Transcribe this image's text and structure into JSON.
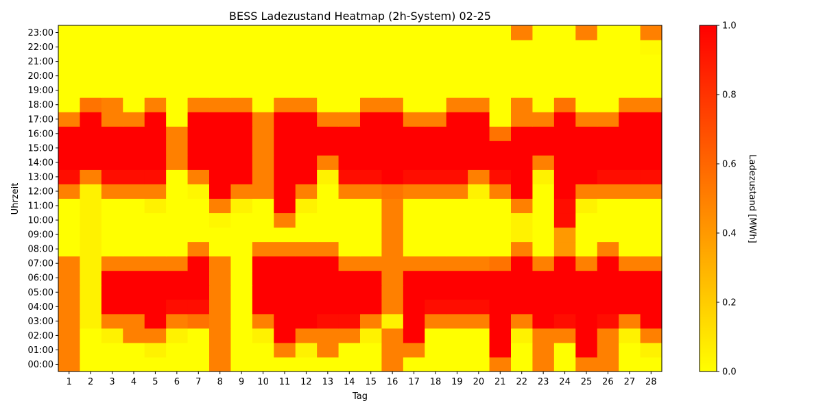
{
  "chart_data": {
    "type": "heatmap",
    "title": "BESS Ladezustand Heatmap (2h-System) 02-25",
    "xlabel": "Tag",
    "ylabel": "Uhrzeit",
    "x_categories": [
      "1",
      "2",
      "3",
      "4",
      "5",
      "6",
      "7",
      "8",
      "9",
      "10",
      "11",
      "12",
      "13",
      "14",
      "15",
      "16",
      "17",
      "18",
      "19",
      "20",
      "21",
      "22",
      "23",
      "24",
      "25",
      "26",
      "27",
      "28"
    ],
    "y_categories": [
      "00:00",
      "01:00",
      "02:00",
      "03:00",
      "04:00",
      "05:00",
      "06:00",
      "07:00",
      "08:00",
      "09:00",
      "10:00",
      "11:00",
      "12:00",
      "13:00",
      "14:00",
      "15:00",
      "16:00",
      "17:00",
      "18:00",
      "19:00",
      "20:00",
      "21:00",
      "22:00",
      "23:00"
    ],
    "colorbar": {
      "label": "Ladezustand [MWh]",
      "range": [
        0.0,
        1.0
      ],
      "ticks": [
        "0.0",
        "0.2",
        "0.4",
        "0.6",
        "0.8",
        "1.0"
      ],
      "colors": [
        "#ffff00",
        "#ff0000"
      ]
    },
    "values_by_hour": [
      [
        0.5,
        0,
        0,
        0,
        0,
        0,
        0,
        0.5,
        0,
        0,
        0,
        0,
        0,
        0,
        0,
        0.5,
        0,
        0,
        0,
        0,
        0.5,
        0,
        0.5,
        0,
        0.5,
        0.5,
        0,
        0
      ],
      [
        0.5,
        0,
        0,
        0,
        0.05,
        0,
        0,
        0.5,
        0,
        0,
        0.5,
        0.05,
        0.5,
        0,
        0,
        0.5,
        0.5,
        0,
        0,
        0,
        1,
        0,
        0.5,
        0,
        1,
        0.5,
        0,
        0.05
      ],
      [
        0.5,
        0,
        0.05,
        0.5,
        0.5,
        0.05,
        0,
        0.5,
        0,
        0.05,
        1,
        0.5,
        0.5,
        0.5,
        0.05,
        0.5,
        1,
        0,
        0,
        0,
        1,
        0.05,
        0.5,
        0.5,
        1,
        0.5,
        0.05,
        0.5
      ],
      [
        0.5,
        0.05,
        0.5,
        0.5,
        1,
        0.5,
        0.55,
        0.5,
        0,
        0.5,
        1,
        1,
        0.95,
        0.95,
        0.5,
        0.05,
        1,
        0.5,
        0.5,
        0.5,
        1,
        0.5,
        1,
        0.95,
        1,
        0.95,
        0.5,
        1
      ],
      [
        0.5,
        0.05,
        1,
        1,
        1,
        0.95,
        0.95,
        0.5,
        0,
        1,
        1,
        1,
        1,
        1,
        1,
        0.5,
        1,
        0.95,
        0.95,
        0.95,
        1,
        1,
        1,
        1,
        1,
        1,
        1,
        1
      ],
      [
        0.5,
        0.05,
        1,
        1,
        1,
        1,
        1,
        0.5,
        0,
        1,
        1,
        1,
        1,
        1,
        1,
        0.5,
        1,
        1,
        1,
        1,
        1,
        1,
        1,
        1,
        1,
        1,
        1,
        1
      ],
      [
        0.5,
        0.05,
        1,
        1,
        1,
        1,
        1,
        0.5,
        0,
        1,
        1,
        1,
        1,
        1,
        1,
        0.5,
        1,
        1,
        1,
        1,
        1,
        1,
        1,
        1,
        1,
        1,
        1,
        1
      ],
      [
        0.5,
        0.05,
        0.5,
        0.5,
        0.5,
        0.5,
        1,
        0.5,
        0,
        1,
        1,
        1,
        1,
        0.5,
        0.5,
        0.5,
        0.5,
        0.5,
        0.5,
        0.5,
        0.55,
        1,
        0.5,
        1,
        0.5,
        1,
        0.5,
        0.5
      ],
      [
        0,
        0.05,
        0,
        0,
        0,
        0,
        0.5,
        0,
        0,
        0.5,
        0.5,
        0.5,
        0.5,
        0,
        0,
        0.5,
        0,
        0,
        0,
        0,
        0,
        0.5,
        0,
        0.4,
        0,
        0.5,
        0,
        0
      ],
      [
        0,
        0.05,
        0,
        0,
        0,
        0,
        0,
        0,
        0,
        0,
        0,
        0,
        0,
        0,
        0,
        0.5,
        0,
        0,
        0,
        0,
        0,
        0.05,
        0,
        0.4,
        0,
        0,
        0,
        0
      ],
      [
        0,
        0.05,
        0,
        0,
        0,
        0,
        0,
        0.03,
        0,
        0,
        0.5,
        0,
        0,
        0,
        0,
        0.5,
        0,
        0,
        0,
        0,
        0,
        0.05,
        0,
        0.95,
        0,
        0,
        0,
        0
      ],
      [
        0,
        0.05,
        0,
        0,
        0.05,
        0,
        0,
        0.5,
        0.05,
        0,
        1,
        0.05,
        0,
        0,
        0,
        0.5,
        0,
        0,
        0,
        0,
        0,
        0.5,
        0,
        0.95,
        0.05,
        0,
        0,
        0
      ],
      [
        0.5,
        0.05,
        0.5,
        0.5,
        0.5,
        0,
        0.03,
        1,
        0.5,
        0.5,
        1,
        0.5,
        0,
        0.5,
        0.5,
        0.55,
        0.5,
        0.5,
        0.5,
        0.05,
        0.5,
        1,
        0,
        1,
        0.5,
        0.5,
        0.5,
        0.5
      ],
      [
        0.95,
        0.5,
        0.95,
        0.95,
        0.95,
        0,
        0.5,
        1,
        1,
        0.5,
        1,
        1,
        0.05,
        0.95,
        0.95,
        1,
        0.95,
        0.95,
        0.95,
        0.5,
        0.95,
        1,
        0.05,
        1,
        1,
        0.95,
        0.95,
        0.95
      ],
      [
        1,
        1,
        1,
        1,
        1,
        0.5,
        1,
        1,
        1,
        0.5,
        1,
        1,
        0.5,
        1,
        1,
        1,
        1,
        1,
        1,
        1,
        1,
        1,
        0.5,
        1,
        1,
        1,
        1,
        1
      ],
      [
        1,
        1,
        1,
        1,
        1,
        0.5,
        1,
        1,
        1,
        0.5,
        1,
        1,
        1,
        1,
        1,
        1,
        1,
        1,
        1,
        1,
        1,
        1,
        1,
        1,
        1,
        1,
        1,
        1
      ],
      [
        1,
        1,
        1,
        1,
        1,
        0.5,
        1,
        1,
        1,
        0.5,
        1,
        1,
        1,
        1,
        1,
        1,
        1,
        1,
        1,
        1,
        0.55,
        1,
        1,
        1,
        1,
        1,
        1,
        1
      ],
      [
        0.5,
        1,
        0.5,
        0.5,
        1,
        0,
        1,
        1,
        1,
        0.5,
        1,
        1,
        0.5,
        0.5,
        1,
        1,
        0.5,
        0.5,
        1,
        1,
        0,
        0.5,
        0.5,
        1,
        0.5,
        0.5,
        1,
        1
      ],
      [
        0,
        0.55,
        0.5,
        0,
        0.5,
        0,
        0.5,
        0.5,
        0.5,
        0,
        0.5,
        0.5,
        0,
        0,
        0.5,
        0.5,
        0,
        0,
        0.5,
        0.5,
        0,
        0.5,
        0,
        0.55,
        0,
        0,
        0.5,
        0.5
      ],
      [
        0,
        0,
        0,
        0,
        0,
        0,
        0,
        0,
        0,
        0,
        0,
        0,
        0,
        0,
        0,
        0,
        0,
        0,
        0,
        0,
        0,
        0,
        0,
        0,
        0,
        0,
        0,
        0
      ],
      [
        0,
        0,
        0,
        0,
        0,
        0,
        0,
        0,
        0,
        0,
        0,
        0,
        0,
        0,
        0,
        0,
        0,
        0,
        0,
        0,
        0,
        0,
        0,
        0,
        0,
        0,
        0,
        0
      ],
      [
        0,
        0,
        0,
        0,
        0,
        0,
        0,
        0,
        0,
        0,
        0,
        0,
        0,
        0,
        0,
        0,
        0,
        0,
        0,
        0,
        0,
        0,
        0,
        0,
        0,
        0,
        0,
        0
      ],
      [
        0,
        0,
        0,
        0,
        0,
        0,
        0,
        0,
        0,
        0,
        0,
        0,
        0,
        0,
        0,
        0,
        0,
        0,
        0,
        0,
        0,
        0,
        0,
        0,
        0,
        0,
        0,
        0.02
      ],
      [
        0,
        0,
        0,
        0,
        0,
        0,
        0,
        0,
        0,
        0,
        0,
        0,
        0,
        0,
        0,
        0,
        0,
        0,
        0,
        0,
        0,
        0.5,
        0,
        0,
        0.5,
        0,
        0,
        0.5
      ]
    ]
  }
}
